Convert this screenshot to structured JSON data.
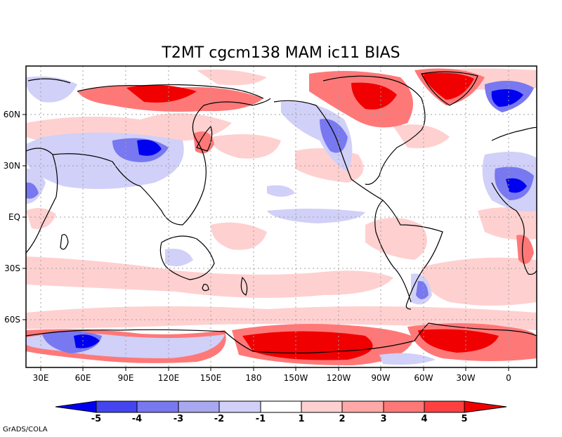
{
  "title": "T2MT cgcm138 MAM ic11 BIAS",
  "credit": "GrADS/COLA",
  "map": {
    "lon_labels": [
      "30E",
      "60E",
      "90E",
      "120E",
      "150E",
      "180",
      "150W",
      "120W",
      "90W",
      "60W",
      "30W",
      "0"
    ],
    "lat_labels": [
      "60N",
      "30N",
      "EQ",
      "30S",
      "60S"
    ]
  },
  "colorbar": {
    "labels": [
      "-5",
      "-4",
      "-3",
      "-2",
      "-1",
      "1",
      "2",
      "3",
      "4",
      "5"
    ],
    "colors": [
      "#0000f0",
      "#4545f0",
      "#7878f0",
      "#a8a8f0",
      "#d0d0f8",
      "#ffffff",
      "#ffd0d0",
      "#ffa8a8",
      "#ff7878",
      "#ff4040",
      "#f00000"
    ]
  }
}
